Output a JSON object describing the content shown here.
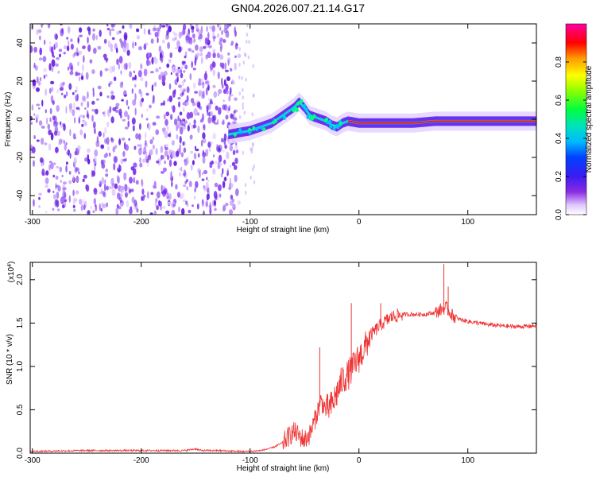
{
  "figure_title": "GN04.2026.007.21.14.G17",
  "colors": {
    "snr_line": "#ee3333",
    "axis": "#000000",
    "noise_scatter": "#7733ee"
  },
  "chart_data": [
    {
      "type": "heatmap",
      "title": "GN04.2026.007.21.14.G17",
      "xlabel": "Height of straight line (km)",
      "ylabel": "Frequency (Hz)",
      "xlim": [
        -302,
        163
      ],
      "ylim": [
        -50,
        50
      ],
      "xticks": [
        -300,
        -200,
        -100,
        0,
        100
      ],
      "xtick_labels": [
        "-300",
        "-200",
        "-100",
        "0",
        "100"
      ],
      "yticks": [
        -40,
        -20,
        0,
        20,
        40
      ],
      "ytick_labels": [
        "-40",
        "-20",
        "0",
        "20",
        "40"
      ],
      "ridge": {
        "x": [
          -120,
          -110,
          -100,
          -90,
          -80,
          -70,
          -60,
          -55,
          -50,
          -45,
          -40,
          -30,
          -25,
          -20,
          -15,
          -10,
          0,
          20,
          50,
          70,
          90,
          120,
          163
        ],
        "y": [
          -8,
          -7,
          -6,
          -4,
          -2,
          2,
          6,
          9,
          6,
          2,
          1,
          -1,
          -3,
          -4,
          -2,
          -1,
          -2,
          -2,
          -2,
          -1,
          -1,
          -1,
          -1
        ]
      },
      "noise_region_x": [
        -302,
        -110
      ],
      "colorbar": {
        "label": "Normalized spectral amplitude",
        "range": [
          0,
          1
        ],
        "ticks": [
          0.0,
          0.2,
          0.4,
          0.6,
          0.8
        ],
        "tick_labels": [
          "0.0",
          "0.2",
          "0.4",
          "0.6",
          "0.8"
        ]
      }
    },
    {
      "type": "line",
      "xlabel": "Height of straight line (km)",
      "ylabel": "SNR (10 * v/v)",
      "y_multiplier": "(x10",
      "y_multiplier_exp": "4",
      "y_multiplier_close": ")",
      "xlim": [
        -302,
        163
      ],
      "ylim": [
        0,
        2.2
      ],
      "xticks": [
        -300,
        -200,
        -100,
        0,
        100
      ],
      "xtick_labels": [
        "-300",
        "-200",
        "-100",
        "0",
        "100"
      ],
      "yticks": [
        0.0,
        0.5,
        1.0,
        1.5,
        2.0
      ],
      "ytick_labels": [
        "0.0",
        "0.5",
        "1.0",
        "1.5",
        "2.0"
      ],
      "series": [
        {
          "name": "SNR",
          "x": [
            -302,
            -250,
            -200,
            -160,
            -150,
            -145,
            -130,
            -110,
            -100,
            -90,
            -80,
            -70,
            -60,
            -55,
            -50,
            -45,
            -40,
            -35,
            -30,
            -25,
            -20,
            -15,
            -10,
            -5,
            0,
            5,
            10,
            20,
            30,
            40,
            50,
            60,
            70,
            80,
            85,
            90,
            100,
            110,
            120,
            130,
            140,
            150,
            163
          ],
          "y": [
            0.02,
            0.03,
            0.03,
            0.03,
            0.05,
            0.03,
            0.03,
            0.02,
            0.02,
            0.03,
            0.06,
            0.12,
            0.25,
            0.2,
            0.15,
            0.22,
            0.4,
            0.6,
            0.5,
            0.55,
            0.7,
            0.85,
            0.9,
            1.0,
            1.1,
            1.2,
            1.35,
            1.48,
            1.57,
            1.6,
            1.6,
            1.6,
            1.62,
            1.68,
            1.6,
            1.55,
            1.52,
            1.5,
            1.48,
            1.47,
            1.46,
            1.46,
            1.47
          ]
        }
      ],
      "spikes": [
        {
          "x": -36,
          "y": 1.22
        },
        {
          "x": -7,
          "y": 1.73
        },
        {
          "x": 20,
          "y": 1.73
        },
        {
          "x": 78,
          "y": 2.18
        },
        {
          "x": 82,
          "y": 1.92
        }
      ]
    }
  ]
}
